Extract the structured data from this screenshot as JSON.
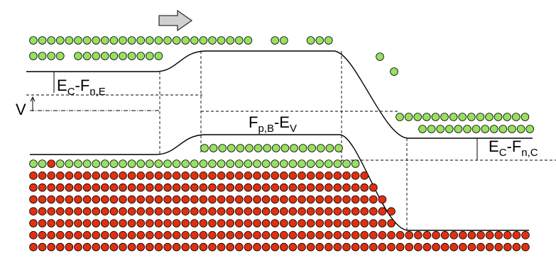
{
  "labels": [
    {
      "segments": [
        {
          "text": "V",
          "sub": false
        }
      ]
    },
    {
      "segments": [
        {
          "text": "E",
          "sub": false
        },
        {
          "text": "C",
          "sub": true
        },
        {
          "text": "-F",
          "sub": false
        },
        {
          "text": "n,E",
          "sub": true
        }
      ]
    },
    {
      "segments": [
        {
          "text": "F",
          "sub": false
        },
        {
          "text": "p,B",
          "sub": true
        },
        {
          "text": "-E",
          "sub": false
        },
        {
          "text": "V",
          "sub": true
        }
      ]
    },
    {
      "segments": [
        {
          "text": "E",
          "sub": false
        },
        {
          "text": "C",
          "sub": true
        },
        {
          "text": "-F",
          "sub": false
        },
        {
          "text": "n,C",
          "sub": true
        }
      ]
    }
  ]
}
